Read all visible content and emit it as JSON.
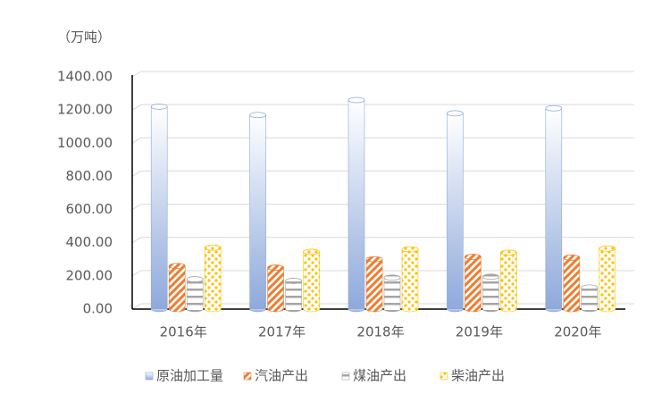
{
  "chart_data": {
    "type": "bar",
    "y_label": "（万吨）",
    "categories": [
      "2016年",
      "2017年",
      "2018年",
      "2019年",
      "2020年"
    ],
    "series": [
      {
        "name": "原油加工量",
        "color": "#8ea9db",
        "values": [
          1220,
          1170,
          1260,
          1180,
          1210
        ]
      },
      {
        "name": "汽油产出",
        "color": "#ed7d31",
        "values": [
          260,
          250,
          300,
          315,
          310
        ]
      },
      {
        "name": "煤油产出",
        "color": "#a5a5a5",
        "values": [
          180,
          170,
          190,
          195,
          130
        ]
      },
      {
        "name": "柴油产出",
        "color": "#ffc000",
        "values": [
          370,
          345,
          360,
          340,
          365
        ]
      }
    ],
    "ylim": [
      0,
      1400
    ],
    "yticks": [
      {
        "value": 0,
        "label": "0.00"
      },
      {
        "value": 200,
        "label": "200.00"
      },
      {
        "value": 400,
        "label": "400.00"
      },
      {
        "value": 600,
        "label": "600.00"
      },
      {
        "value": 800,
        "label": "800.00"
      },
      {
        "value": 1000,
        "label": "1000.00"
      },
      {
        "value": 1200,
        "label": "1200.00"
      },
      {
        "value": 1400,
        "label": "1400.00"
      }
    ],
    "grid": true,
    "legend": "bottom"
  }
}
